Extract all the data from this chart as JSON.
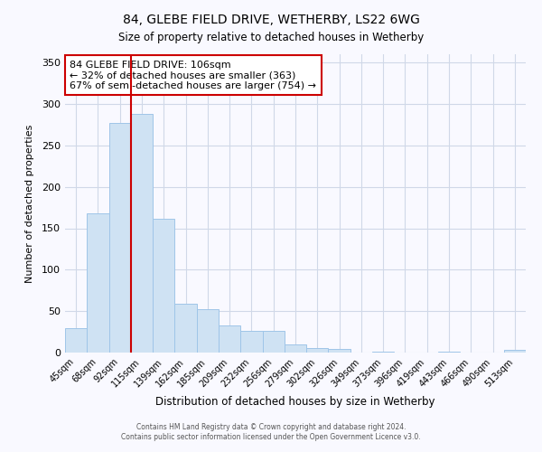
{
  "title": "84, GLEBE FIELD DRIVE, WETHERBY, LS22 6WG",
  "subtitle": "Size of property relative to detached houses in Wetherby",
  "xlabel": "Distribution of detached houses by size in Wetherby",
  "ylabel": "Number of detached properties",
  "bar_labels": [
    "45sqm",
    "68sqm",
    "92sqm",
    "115sqm",
    "139sqm",
    "162sqm",
    "185sqm",
    "209sqm",
    "232sqm",
    "256sqm",
    "279sqm",
    "302sqm",
    "326sqm",
    "349sqm",
    "373sqm",
    "396sqm",
    "419sqm",
    "443sqm",
    "466sqm",
    "490sqm",
    "513sqm"
  ],
  "bar_values": [
    29,
    168,
    277,
    288,
    162,
    59,
    52,
    33,
    26,
    26,
    10,
    5,
    4,
    0,
    1,
    0,
    0,
    1,
    0,
    0,
    3
  ],
  "bar_color": "#cfe2f3",
  "bar_edge_color": "#9fc5e8",
  "vline_pos": 2.5,
  "vline_color": "#cc0000",
  "annotation_title": "84 GLEBE FIELD DRIVE: 106sqm",
  "annotation_line1": "← 32% of detached houses are smaller (363)",
  "annotation_line2": "67% of semi-detached houses are larger (754) →",
  "annotation_box_edge": "#cc0000",
  "ylim": [
    0,
    360
  ],
  "yticks": [
    0,
    50,
    100,
    150,
    200,
    250,
    300,
    350
  ],
  "footer1": "Contains HM Land Registry data © Crown copyright and database right 2024.",
  "footer2": "Contains public sector information licensed under the Open Government Licence v3.0.",
  "bg_color": "#f9f9ff",
  "grid_color": "#d0d8e8"
}
